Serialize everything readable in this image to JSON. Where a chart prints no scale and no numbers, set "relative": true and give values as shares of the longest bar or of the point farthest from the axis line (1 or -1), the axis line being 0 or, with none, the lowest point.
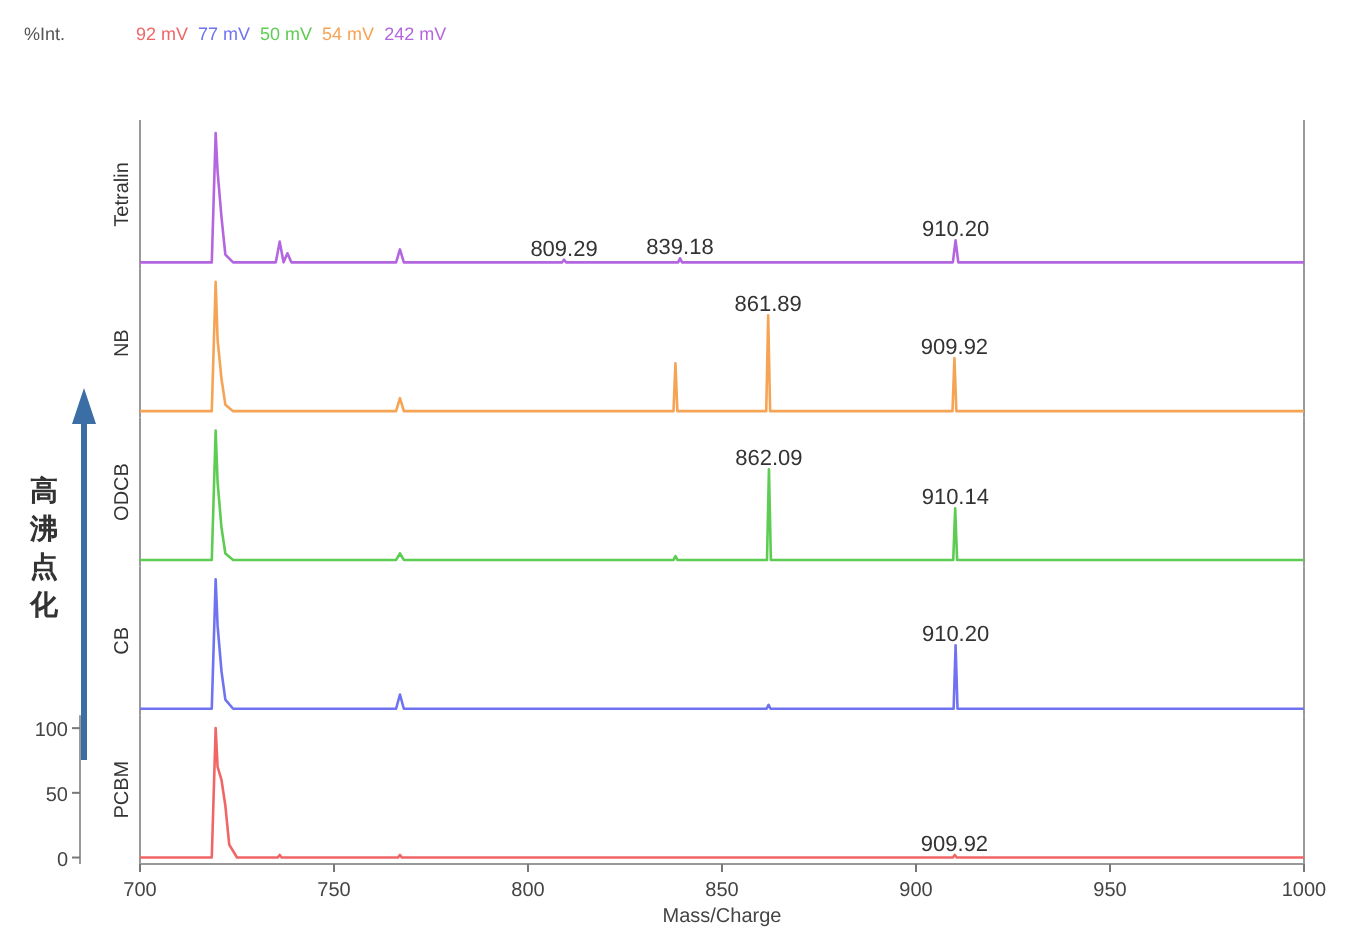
{
  "chart_data": [
    {
      "type": "line",
      "ylabel": "Tetralin",
      "xlim": [
        700,
        1000
      ],
      "relative": true,
      "series": [
        {
          "name": "242 mV",
          "color": "#b366e0",
          "x": [
            700,
            718.5,
            719.5,
            720,
            721,
            722,
            724,
            735,
            736,
            737,
            738,
            739,
            766,
            767,
            768,
            808.8,
            809.3,
            809.8,
            838.7,
            839.2,
            839.7,
            909.5,
            910.2,
            910.9,
            1000
          ],
          "values": [
            0,
            0,
            1,
            0.7,
            0.35,
            0.06,
            0,
            0,
            0.16,
            0,
            0.07,
            0,
            0,
            0.1,
            0,
            0,
            0.02,
            0,
            0,
            0.03,
            0,
            0,
            0.17,
            0,
            0
          ]
        }
      ],
      "annotations": [
        {
          "text": "809.29",
          "x": 809.29,
          "y": 0.02
        },
        {
          "text": "839.18",
          "x": 839.18,
          "y": 0.03
        },
        {
          "text": "910.20",
          "x": 910.2,
          "y": 0.17
        }
      ]
    },
    {
      "type": "line",
      "ylabel": "NB",
      "xlim": [
        700,
        1000
      ],
      "relative": true,
      "series": [
        {
          "name": "54 mV",
          "color": "#f5a455",
          "x": [
            700,
            718.5,
            719.5,
            720,
            721,
            722,
            724,
            766,
            767,
            768,
            837.5,
            838,
            838.5,
            861.4,
            861.9,
            862.4,
            909.4,
            909.9,
            910.4,
            1000
          ],
          "values": [
            0,
            0,
            1,
            0.55,
            0.25,
            0.05,
            0,
            0,
            0.1,
            0,
            0,
            0.37,
            0,
            0,
            0.74,
            0,
            0,
            0.41,
            0,
            0
          ]
        }
      ],
      "annotations": [
        {
          "text": "861.89",
          "x": 861.89,
          "y": 0.74
        },
        {
          "text": "909.92",
          "x": 909.92,
          "y": 0.41
        }
      ]
    },
    {
      "type": "line",
      "ylabel": "ODCB",
      "xlim": [
        700,
        1000
      ],
      "relative": true,
      "series": [
        {
          "name": "50 mV",
          "color": "#5ccc52",
          "x": [
            700,
            718.5,
            719.5,
            720,
            721,
            722,
            724,
            766,
            767,
            768,
            837.5,
            838,
            838.5,
            861.6,
            862.1,
            862.6,
            909.6,
            910.1,
            910.6,
            1000
          ],
          "values": [
            0,
            0,
            1,
            0.6,
            0.25,
            0.05,
            0,
            0,
            0.05,
            0,
            0,
            0.03,
            0,
            0,
            0.7,
            0,
            0,
            0.4,
            0,
            0
          ]
        }
      ],
      "annotations": [
        {
          "text": "862.09",
          "x": 862.09,
          "y": 0.7
        },
        {
          "text": "910.14",
          "x": 910.14,
          "y": 0.4
        }
      ]
    },
    {
      "type": "line",
      "ylabel": "CB",
      "xlim": [
        700,
        1000
      ],
      "relative": true,
      "series": [
        {
          "name": "77 mV",
          "color": "#6f73f2",
          "x": [
            700,
            718.5,
            719.5,
            720,
            721,
            722,
            724,
            766,
            767,
            768,
            861.5,
            862,
            862.5,
            909.7,
            910.2,
            910.7,
            1000
          ],
          "values": [
            0,
            0,
            1,
            0.64,
            0.29,
            0.07,
            0,
            0,
            0.11,
            0,
            0,
            0.03,
            0,
            0,
            0.49,
            0,
            0
          ]
        }
      ],
      "annotations": [
        {
          "text": "910.20",
          "x": 910.2,
          "y": 0.49
        }
      ]
    },
    {
      "type": "line",
      "ylabel": "PCBM",
      "xlabel": "Mass/Charge",
      "xlim": [
        700,
        1000
      ],
      "ylim": [
        -5,
        110
      ],
      "xticks": [
        700,
        750,
        800,
        850,
        900,
        950,
        1000
      ],
      "yticks": [
        0,
        50,
        100
      ],
      "series": [
        {
          "name": "92 mV",
          "color": "#f06666",
          "x": [
            700,
            718.5,
            719.5,
            720,
            721,
            722,
            723,
            725,
            735.5,
            736,
            736.5,
            766.5,
            767,
            767.5,
            909.5,
            910,
            910.5,
            1000
          ],
          "values": [
            0,
            0,
            100,
            70,
            60,
            40,
            10,
            0,
            0,
            2,
            0,
            0,
            2,
            0,
            0,
            2,
            0,
            0
          ]
        }
      ],
      "annotations": [
        "%Int.",
        "高沸点化",
        {
          "text": "909.92",
          "x": 909.92,
          "y": 2
        }
      ]
    }
  ]
}
